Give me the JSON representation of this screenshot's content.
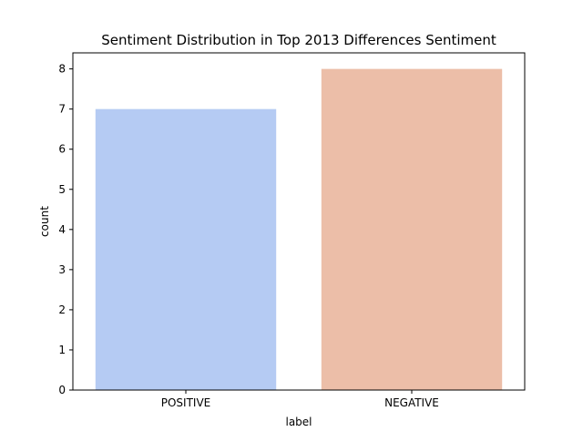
{
  "chart_data": {
    "type": "bar",
    "title": "Sentiment Distribution in Top 2013 Differences Sentiment",
    "xlabel": "label",
    "ylabel": "count",
    "categories": [
      "POSITIVE",
      "NEGATIVE"
    ],
    "values": [
      7,
      8
    ],
    "colors": [
      "#b5cbf3",
      "#ecbea8"
    ],
    "yticks": [
      0,
      1,
      2,
      3,
      4,
      5,
      6,
      7,
      8
    ],
    "ylim": [
      0,
      8.4
    ],
    "grid": false,
    "legend": "none"
  }
}
